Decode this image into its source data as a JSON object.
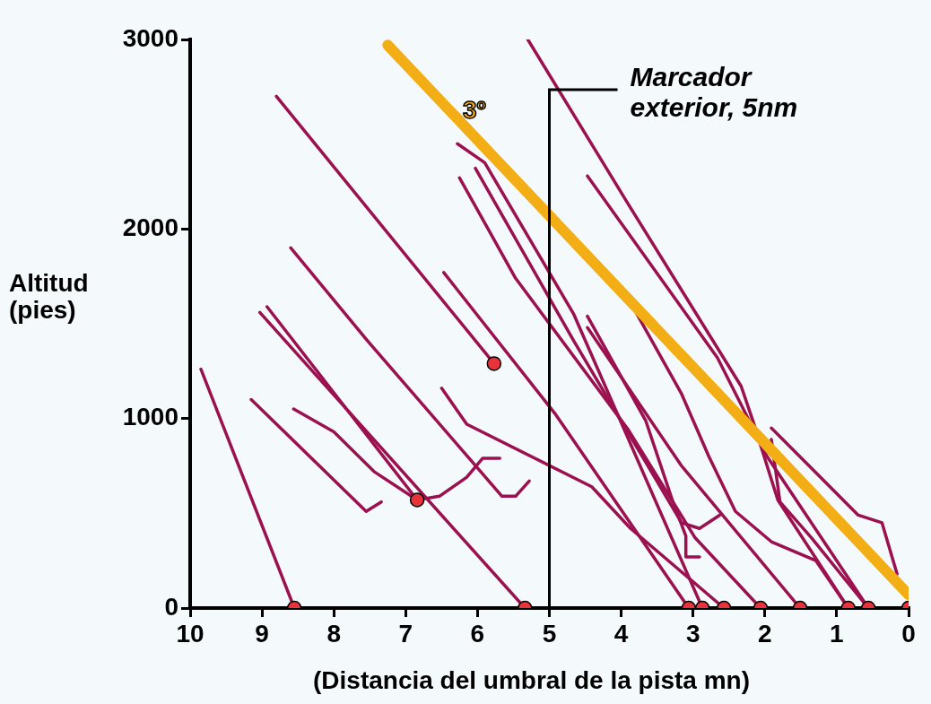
{
  "chart_data": {
    "type": "line",
    "xlabel": "(Distancia del umbral de la pista mn)",
    "ylabel": "Altitud (pies)",
    "xlim": [
      10,
      0
    ],
    "xticks": [
      10,
      9,
      8,
      7,
      6,
      5,
      4,
      3,
      2,
      1,
      0
    ],
    "ylim": [
      0,
      3000
    ],
    "yticks": [
      0,
      1000,
      2000,
      3000
    ],
    "grid": false,
    "legend": false,
    "marker": "none",
    "ref_lines": [
      {
        "axis": "x",
        "value": 5,
        "label": "Marcador exterior, 5nm",
        "color": "#000000"
      }
    ],
    "series": [
      {
        "name": "3º",
        "color": "#f2ae14",
        "x": [
          7.25,
          0
        ],
        "values": [
          2970,
          70
        ]
      },
      {
        "color": "#9b1150",
        "x": [
          9.85,
          8.55
        ],
        "values": [
          1260,
          0
        ]
      },
      {
        "color": "#9b1150",
        "x": [
          9.15,
          7.55,
          7.34
        ],
        "values": [
          1100,
          510,
          560
        ]
      },
      {
        "color": "#9b1150",
        "x": [
          8.56,
          8.0,
          7.44,
          6.84,
          6.53,
          6.15,
          5.93,
          5.69
        ],
        "values": [
          1050,
          930,
          720,
          570,
          590,
          690,
          790,
          790
        ]
      },
      {
        "color": "#9b1150",
        "x": [
          9.03,
          5.34
        ],
        "values": [
          1560,
          0
        ]
      },
      {
        "color": "#9b1150",
        "x": [
          8.93,
          6.84
        ],
        "values": [
          1590,
          570
        ]
      },
      {
        "color": "#9b1150",
        "x": [
          8.8,
          5.77
        ],
        "values": [
          2700,
          1290
        ]
      },
      {
        "color": "#9b1150",
        "x": [
          8.6,
          7.53,
          5.66,
          5.47,
          5.28
        ],
        "values": [
          1900,
          1410,
          590,
          590,
          670
        ]
      },
      {
        "color": "#9b1150",
        "x": [
          6.47,
          4.91,
          3.06
        ],
        "values": [
          1770,
          1020,
          0
        ]
      },
      {
        "color": "#9b1150",
        "x": [
          6.5,
          6.15,
          4.41,
          3.87,
          2.57
        ],
        "values": [
          1160,
          970,
          640,
          420,
          0
        ]
      },
      {
        "color": "#9b1150",
        "x": [
          5.3,
          3.9,
          2.33,
          2.16,
          1.82,
          0.84
        ],
        "values": [
          3000,
          2130,
          1170,
          980,
          570,
          0
        ]
      },
      {
        "color": "#9b1150",
        "x": [
          4.47,
          2.66,
          2.22,
          1.97,
          0.56
        ],
        "values": [
          2280,
          1320,
          990,
          800,
          0
        ]
      },
      {
        "color": "#9b1150",
        "x": [
          6.28,
          5.9,
          4.66,
          2.87
        ],
        "values": [
          2450,
          2350,
          1550,
          0
        ]
      },
      {
        "color": "#9b1150",
        "x": [
          6.25,
          5.47,
          3.9,
          2.97,
          2.06
        ],
        "values": [
          2270,
          1740,
          940,
          370,
          0
        ]
      },
      {
        "color": "#9b1150",
        "x": [
          6.03,
          4.66,
          3.16,
          2.91,
          2.63
        ],
        "values": [
          2320,
          1410,
          450,
          420,
          490
        ]
      },
      {
        "color": "#9b1150",
        "x": [
          4.47,
          3.66,
          3.28,
          3.1,
          3.1,
          2.91
        ],
        "values": [
          1540,
          990,
          560,
          380,
          270,
          270
        ]
      },
      {
        "color": "#9b1150",
        "x": [
          4.47,
          3.16,
          1.51
        ],
        "values": [
          1480,
          750,
          0
        ]
      },
      {
        "color": "#9b1150",
        "x": [
          3.78,
          3.16,
          2.78,
          2.41,
          1.91,
          1.29,
          0.84
        ],
        "values": [
          1550,
          1130,
          800,
          510,
          350,
          250,
          0
        ]
      },
      {
        "color": "#9b1150",
        "x": [
          1.91,
          0.7,
          0.37,
          0.16
        ],
        "values": [
          950,
          490,
          450,
          180
        ]
      },
      {
        "color": "#9b1150",
        "x": [
          1.91,
          1.79,
          1.35,
          0.56
        ],
        "values": [
          890,
          560,
          370,
          0
        ]
      },
      {
        "type": "scatter",
        "marker": "circle",
        "color": "#e8333a",
        "x": [
          8.55,
          5.34,
          6.84,
          5.77,
          3.06,
          2.87,
          2.57,
          2.06,
          1.51,
          0.84,
          0.56,
          0
        ],
        "values": [
          0,
          0,
          570,
          1290,
          0,
          0,
          0,
          0,
          0,
          0,
          0,
          0
        ]
      }
    ]
  }
}
